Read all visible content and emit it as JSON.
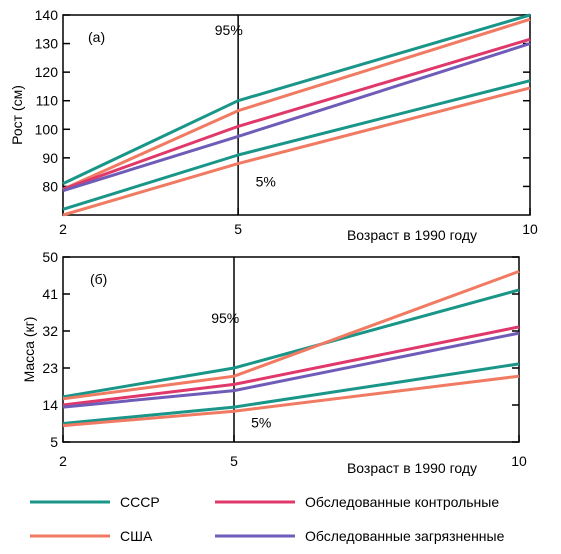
{
  "chart_data": [
    {
      "type": "line",
      "panel_label": "(a)",
      "title": "",
      "ylabel": "Рост (см)",
      "xlabel": "Возраст в 1990 году",
      "x_ticks": [
        2,
        5,
        10
      ],
      "y_ticks": [
        80,
        90,
        100,
        110,
        120,
        130,
        140
      ],
      "xlim": [
        2,
        10
      ],
      "ylim": [
        70,
        140
      ],
      "divider_x": 5,
      "annotations": [
        {
          "text": "95%",
          "x": 4.6,
          "y": 133
        },
        {
          "text": "5%",
          "x": 5.3,
          "y": 80
        }
      ],
      "series": [
        {
          "key": "ussr",
          "pct": "95",
          "x": [
            2,
            5,
            10
          ],
          "y": [
            81,
            110,
            140
          ]
        },
        {
          "key": "usa",
          "pct": "95",
          "x": [
            2,
            5,
            10
          ],
          "y": [
            79,
            106.5,
            138.5
          ]
        },
        {
          "key": "control",
          "pct": "95",
          "x": [
            2,
            5,
            10
          ],
          "y": [
            79,
            101,
            131.5
          ]
        },
        {
          "key": "polluted",
          "pct": "95",
          "x": [
            2,
            5,
            10
          ],
          "y": [
            78.5,
            97.5,
            130
          ]
        },
        {
          "key": "ussr",
          "pct": "5",
          "x": [
            2,
            5,
            10
          ],
          "y": [
            72,
            91,
            117
          ]
        },
        {
          "key": "usa",
          "pct": "5",
          "x": [
            2,
            5,
            10
          ],
          "y": [
            70,
            88,
            114.5
          ]
        }
      ]
    },
    {
      "type": "line",
      "panel_label": "(б)",
      "title": "",
      "ylabel": "Масса (кг)",
      "xlabel": "Возраст в 1990 году",
      "x_ticks": [
        2,
        5,
        10
      ],
      "y_ticks": [
        5,
        14,
        23,
        32,
        41,
        50
      ],
      "xlim": [
        2,
        10
      ],
      "ylim": [
        5,
        50
      ],
      "divider_x": 5,
      "annotations": [
        {
          "text": "95%",
          "x": 4.6,
          "y": 34
        },
        {
          "text": "5%",
          "x": 5.3,
          "y": 8.5
        }
      ],
      "series": [
        {
          "key": "ussr",
          "pct": "95",
          "x": [
            2,
            5,
            10
          ],
          "y": [
            16,
            23,
            42
          ]
        },
        {
          "key": "usa",
          "pct": "95",
          "x": [
            2,
            5,
            10
          ],
          "y": [
            15.5,
            21,
            46.5
          ]
        },
        {
          "key": "control",
          "pct": "95",
          "x": [
            2,
            5,
            10
          ],
          "y": [
            14,
            19,
            33
          ]
        },
        {
          "key": "polluted",
          "pct": "95",
          "x": [
            2,
            5,
            10
          ],
          "y": [
            13.5,
            17.5,
            31.5
          ]
        },
        {
          "key": "ussr",
          "pct": "5",
          "x": [
            2,
            5,
            10
          ],
          "y": [
            9.5,
            13.5,
            24
          ]
        },
        {
          "key": "usa",
          "pct": "5",
          "x": [
            2,
            5,
            10
          ],
          "y": [
            9,
            12.5,
            21
          ]
        }
      ]
    }
  ],
  "legend": [
    {
      "key": "ussr",
      "label": "СССР",
      "color": "#1a9688"
    },
    {
      "key": "usa",
      "label": "США",
      "color": "#f07a62"
    },
    {
      "key": "control",
      "label": "Обследованные контрольные",
      "color": "#e0386a"
    },
    {
      "key": "polluted",
      "label": "Обследованные загрязненные",
      "color": "#6f5cb8"
    }
  ]
}
